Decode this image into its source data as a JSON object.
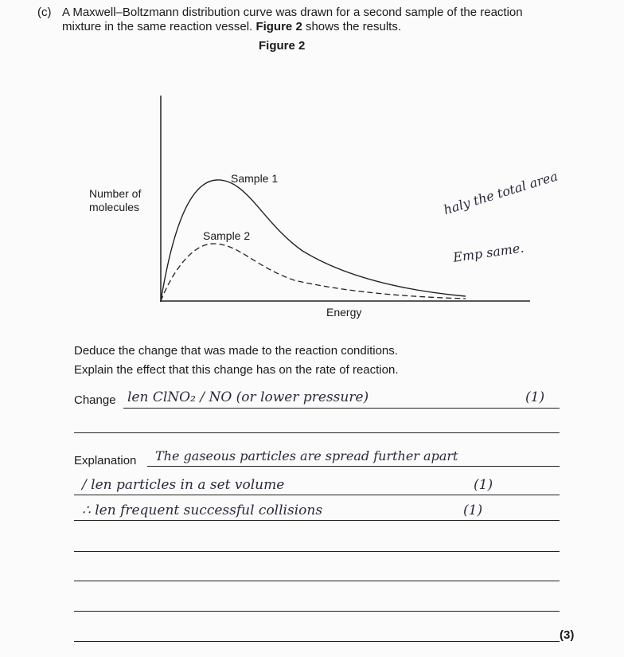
{
  "question": {
    "part": "(c)",
    "intro_line1": "A Maxwell–Boltzmann distribution curve was drawn for a second sample of the reaction",
    "intro_line2_pre": "mixture in the same reaction vessel. ",
    "intro_line2_bold": "Figure 2",
    "intro_line2_post": " shows the results.",
    "figure_title": "Figure 2",
    "instruction1": "Deduce the change that was made to the reaction conditions.",
    "instruction2": "Explain the effect that this change has on the rate of reaction.",
    "change_label": "Change",
    "explanation_label": "Explanation",
    "marks": "(3)"
  },
  "figure": {
    "y_label_line1": "Number of",
    "y_label_line2": "molecules",
    "x_label": "Energy",
    "curve_labels": [
      "Sample 1",
      "Sample 2"
    ],
    "annotation_line1": "haly the total area",
    "annotation_line2": "Emp same."
  },
  "answers": {
    "change": "len ClNO₂ / NO   (or lower pressure)",
    "change_mark": "(1)",
    "explanation_line1": "The gaseous particles are spread further apart",
    "explanation_line2": "/ len particles in a set volume",
    "explanation_line2_mark": "(1)",
    "explanation_line3": "∴ len frequent successful collisions",
    "explanation_line3_mark": "(1)"
  }
}
